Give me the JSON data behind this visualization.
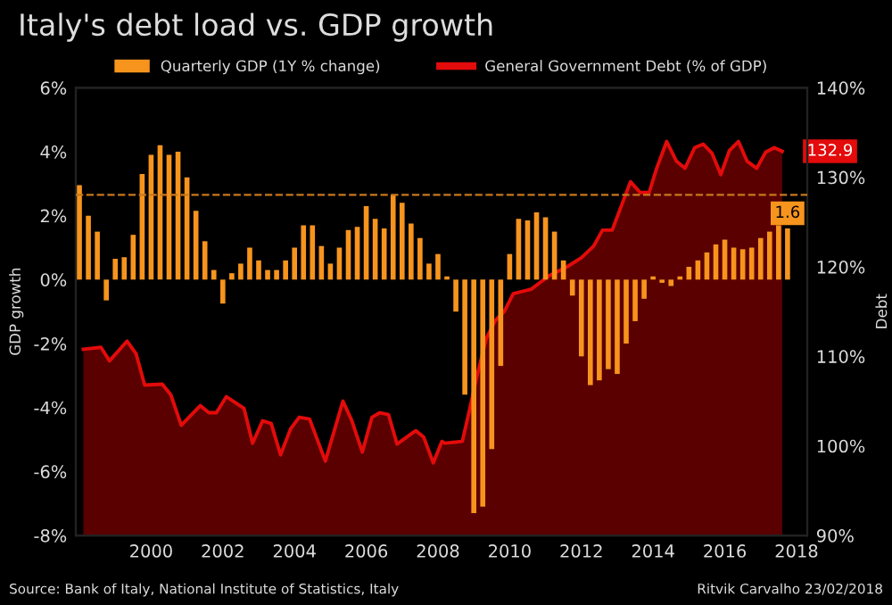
{
  "chart_data": {
    "type": "bar",
    "title": "Italy's debt load vs. GDP growth",
    "xlabel": null,
    "ylabel": "GDP growth",
    "y2label": "Debt",
    "xlim": [
      1997.9,
      2018.3
    ],
    "xticks": [
      2000,
      2002,
      2004,
      2006,
      2008,
      2010,
      2012,
      2014,
      2016,
      2018
    ],
    "ylim": [
      -8,
      6
    ],
    "yticks": [
      {
        "value": -8,
        "label": "-8%"
      },
      {
        "value": -6,
        "label": "-6%"
      },
      {
        "value": -4,
        "label": "-4%"
      },
      {
        "value": -2,
        "label": "-2%"
      },
      {
        "value": 0,
        "label": "0%"
      },
      {
        "value": 2,
        "label": "2%"
      },
      {
        "value": 4,
        "label": "4%"
      },
      {
        "value": 6,
        "label": "6%"
      }
    ],
    "y2lim": [
      90,
      140
    ],
    "y2ticks": [
      {
        "value": 90,
        "label": "90%"
      },
      {
        "value": 100,
        "label": "100%"
      },
      {
        "value": 110,
        "label": "110%"
      },
      {
        "value": 120,
        "label": "120%"
      },
      {
        "value": 130,
        "label": "130%"
      },
      {
        "value": 140,
        "label": "140%"
      }
    ],
    "legend": "top",
    "grid": false,
    "ref_lines": [
      {
        "axis": "y",
        "value": 2.65,
        "label": null,
        "color": "#c8781e",
        "line_style": "dashed"
      }
    ],
    "series": [
      {
        "name": "General Government Debt (% of GDP)",
        "type": "area",
        "axis": "y2",
        "color": "#e30b0b",
        "x": [
          1998.11,
          1998.6,
          1998.84,
          1999.33,
          1999.58,
          1999.82,
          2000.31,
          2000.55,
          2000.84,
          2001.37,
          2001.61,
          2001.82,
          2002.1,
          2002.59,
          2002.83,
          2003.11,
          2003.35,
          2003.61,
          2003.89,
          2004.13,
          2004.42,
          2004.86,
          2005.35,
          2005.6,
          2005.89,
          2006.16,
          2006.38,
          2006.62,
          2006.86,
          2007.38,
          2007.6,
          2007.87,
          2008.11,
          2008.2,
          2008.68,
          2008.88,
          2009.1,
          2009.35,
          2009.6,
          2009.85,
          2010.1,
          2010.6,
          2011.1,
          2011.6,
          2012.0,
          2012.34,
          2012.59,
          2012.86,
          2013.37,
          2013.64,
          2013.89,
          2014.1,
          2014.38,
          2014.65,
          2014.89,
          2015.16,
          2015.4,
          2015.64,
          2015.89,
          2016.13,
          2016.38,
          2016.62,
          2016.89,
          2017.14,
          2017.38,
          2017.6
        ],
        "values": [
          110.8,
          111,
          109.5,
          111.7,
          110.3,
          106.8,
          106.9,
          105.7,
          102.3,
          104.5,
          103.7,
          103.7,
          105.5,
          104.2,
          100.3,
          102.8,
          102.5,
          99,
          101.9,
          103.2,
          103,
          98.3,
          105,
          102.8,
          99.3,
          103.2,
          103.7,
          103.5,
          100.2,
          101.7,
          101,
          98.1,
          100.5,
          100.3,
          100.5,
          104,
          108,
          112,
          114,
          115,
          117,
          117.5,
          119,
          120,
          121,
          122.3,
          124.1,
          124.1,
          129.5,
          128.3,
          128.3,
          131,
          134,
          131.8,
          131,
          133.3,
          133.7,
          132.7,
          130.3,
          133,
          134,
          131.8,
          131,
          132.8,
          133.3,
          132.9
        ],
        "value_labels": [
          null,
          null,
          null,
          null,
          null,
          null,
          null,
          null,
          null,
          null,
          null,
          null,
          null,
          null,
          null,
          null,
          null,
          null,
          null,
          null,
          null,
          null,
          null,
          null,
          null,
          null,
          null,
          null,
          null,
          null,
          null,
          null,
          null,
          null,
          null,
          null,
          null,
          null,
          null,
          null,
          null,
          null,
          null,
          null,
          null,
          null,
          null,
          null,
          null,
          null,
          null,
          null,
          null,
          null,
          null,
          null,
          null,
          null,
          null,
          null,
          null,
          null,
          null,
          null,
          null,
          "132.9"
        ]
      },
      {
        "name": "Quarterly GDP (1Y % change)",
        "axis": "y",
        "color": "#f7941d",
        "x": [
          1998.0,
          1998.25,
          1998.5,
          1998.75,
          1999.0,
          1999.25,
          1999.5,
          1999.75,
          2000.0,
          2000.25,
          2000.5,
          2000.75,
          2001.0,
          2001.25,
          2001.5,
          2001.75,
          2002.0,
          2002.25,
          2002.5,
          2002.75,
          2003.0,
          2003.25,
          2003.5,
          2003.75,
          2004.0,
          2004.25,
          2004.5,
          2004.75,
          2005.0,
          2005.25,
          2005.5,
          2005.75,
          2006.0,
          2006.25,
          2006.5,
          2006.75,
          2007.0,
          2007.25,
          2007.5,
          2007.75,
          2008.0,
          2008.25,
          2008.5,
          2008.75,
          2009.0,
          2009.25,
          2009.5,
          2009.75,
          2010.0,
          2010.25,
          2010.5,
          2010.75,
          2011.0,
          2011.25,
          2011.5,
          2011.75,
          2012.0,
          2012.25,
          2012.5,
          2012.75,
          2013.0,
          2013.25,
          2013.5,
          2013.75,
          2014.0,
          2014.25,
          2014.5,
          2014.75,
          2015.0,
          2015.25,
          2015.5,
          2015.75,
          2016.0,
          2016.25,
          2016.5,
          2016.75,
          2017.0,
          2017.25,
          2017.5,
          2017.75
        ],
        "values": [
          2.95,
          2.0,
          1.5,
          -0.65,
          0.65,
          0.7,
          1.4,
          3.3,
          3.9,
          4.2,
          3.9,
          4.0,
          3.2,
          2.15,
          1.2,
          0.3,
          -0.75,
          0.2,
          0.5,
          1.0,
          0.6,
          0.3,
          0.3,
          0.6,
          1.0,
          1.7,
          1.7,
          1.05,
          0.5,
          1.0,
          1.55,
          1.65,
          2.3,
          1.9,
          1.6,
          2.65,
          2.4,
          1.75,
          1.3,
          0.5,
          0.8,
          0.1,
          -1.0,
          -3.6,
          -7.3,
          -7.1,
          -5.3,
          -2.7,
          0.8,
          1.9,
          1.85,
          2.1,
          1.95,
          1.5,
          0.6,
          -0.5,
          -2.4,
          -3.3,
          -3.15,
          -2.8,
          -2.95,
          -2.0,
          -1.3,
          -0.6,
          0.1,
          -0.1,
          -0.2,
          0.1,
          0.4,
          0.6,
          0.85,
          1.1,
          1.25,
          1.0,
          0.95,
          1.0,
          1.3,
          1.5,
          1.7,
          1.6
        ],
        "value_labels": [
          null,
          null,
          null,
          null,
          null,
          null,
          null,
          null,
          null,
          null,
          null,
          null,
          null,
          null,
          null,
          null,
          null,
          null,
          null,
          null,
          null,
          null,
          null,
          null,
          null,
          null,
          null,
          null,
          null,
          null,
          null,
          null,
          null,
          null,
          null,
          null,
          null,
          null,
          null,
          null,
          null,
          null,
          null,
          null,
          null,
          null,
          null,
          null,
          null,
          null,
          null,
          null,
          null,
          null,
          null,
          null,
          null,
          null,
          null,
          null,
          null,
          null,
          null,
          null,
          null,
          null,
          null,
          null,
          null,
          null,
          null,
          null,
          null,
          null,
          null,
          null,
          null,
          null,
          null,
          "1.6"
        ]
      }
    ],
    "annotations": [
      "Source: Bank of Italy, National Institute of Statistics, Italy",
      "Ritvik Carvalho 23/02/2018"
    ]
  }
}
